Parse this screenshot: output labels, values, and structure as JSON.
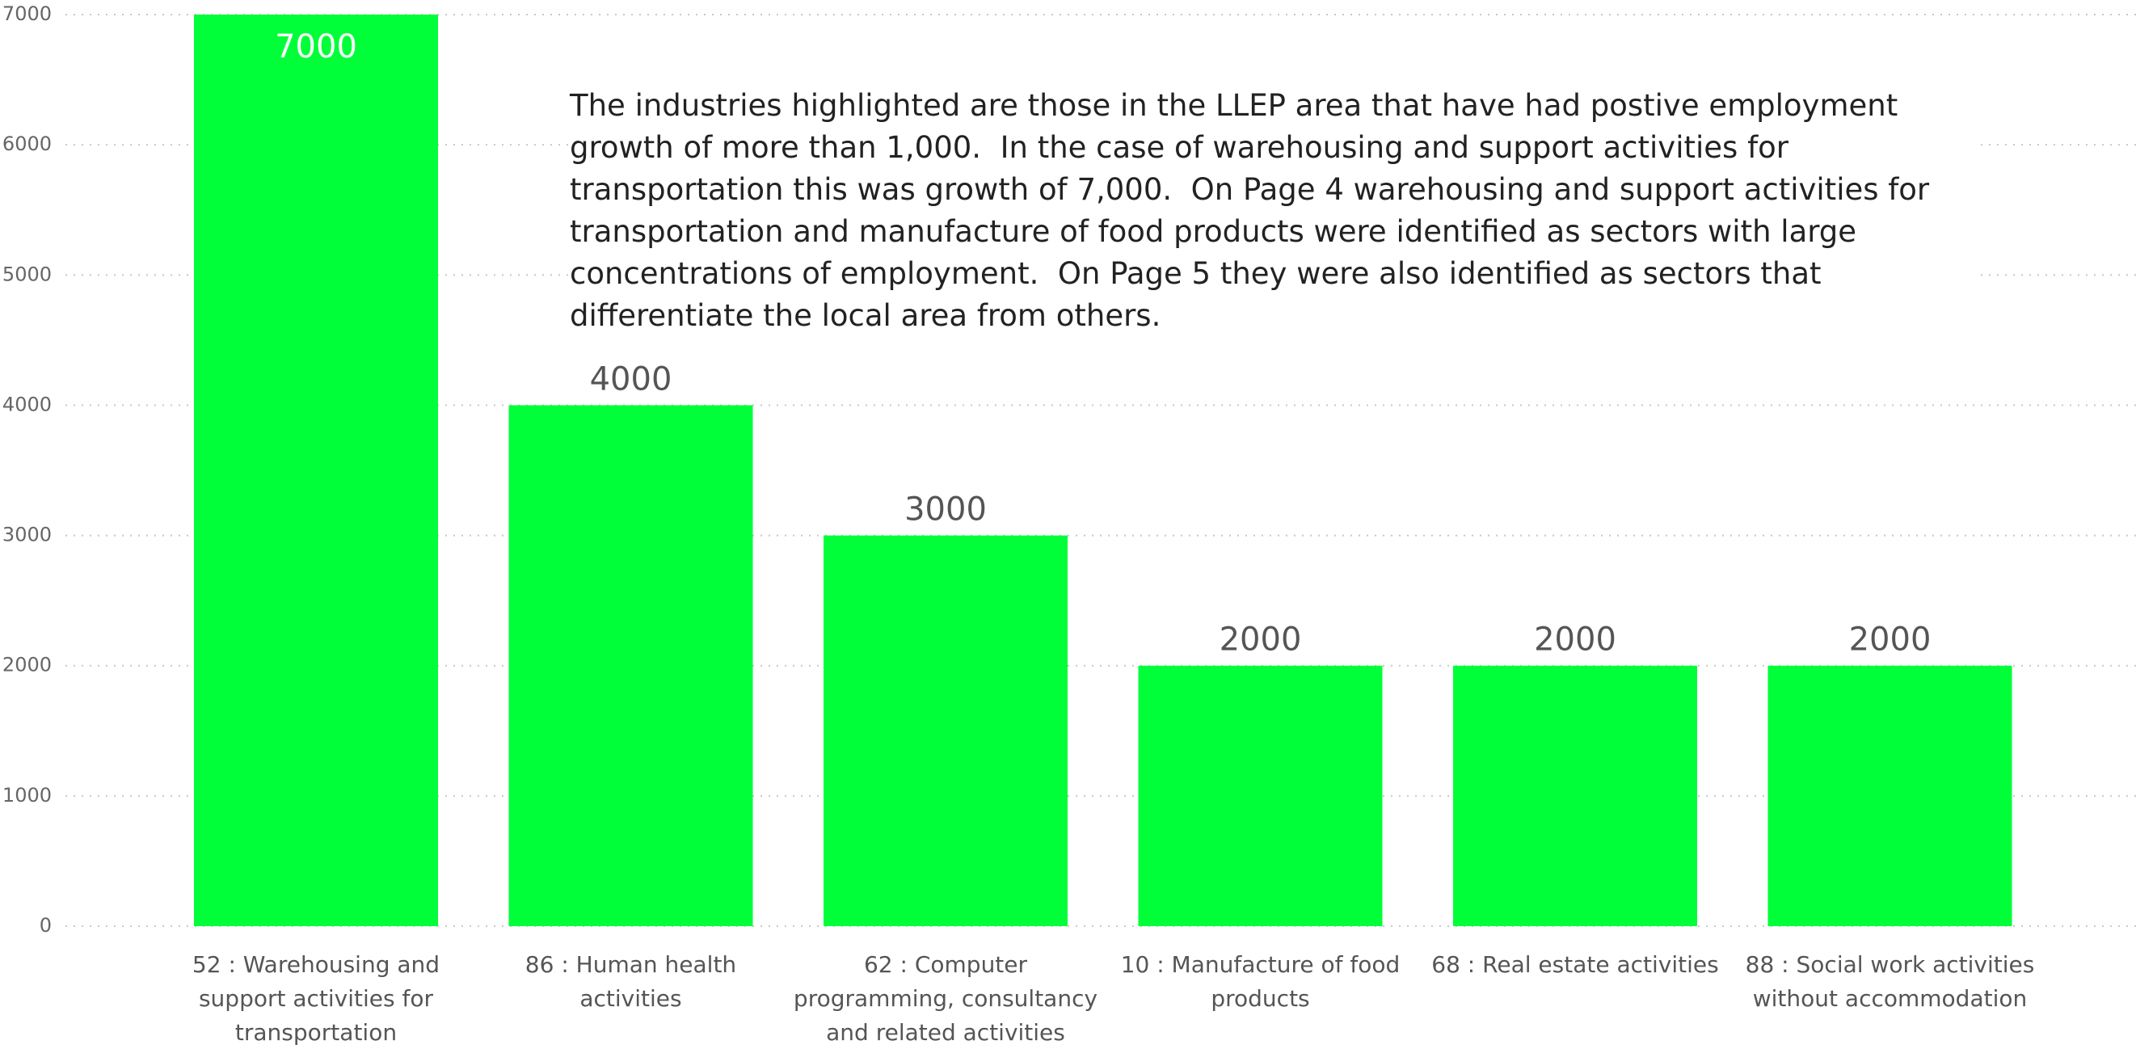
{
  "chart_data": {
    "type": "bar",
    "categories": [
      "52 : Warehousing and support activities for transportation",
      "86 : Human health activities",
      "62 : Computer programming, consultancy and related activities",
      "10 : Manufacture of food products",
      "68 : Real estate activities",
      "88 : Social work activities without accommodation"
    ],
    "values": [
      7000,
      4000,
      3000,
      2000,
      2000,
      2000
    ],
    "color": "#00ff38",
    "ylim": [
      0,
      7000
    ],
    "yticks": [
      0,
      1000,
      2000,
      3000,
      4000,
      5000,
      6000,
      7000
    ],
    "grid": true,
    "annotation": "The industries highlighted are those in the LLEP area that have had postive employment growth of more than 1,000.  In the case of warehousing and support activities for transportation this was growth of 7,000.  On Page 4 warehousing and support activities for transportation and manufacture of food products were identified as sectors with large concentrations of employment.  On Page 5 they were also identified as sectors that differentiate the local area from others."
  }
}
